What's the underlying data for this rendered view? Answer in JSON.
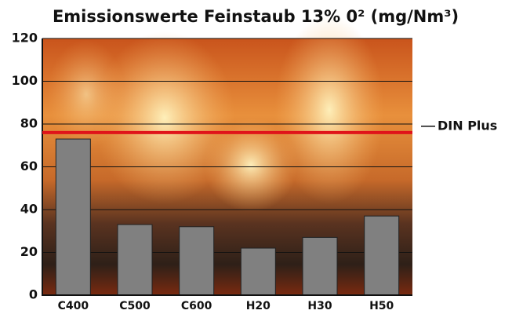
{
  "chart_data": {
    "type": "bar",
    "title": "Emissionswerte Feinstaub 13% 0² (mg/Nm³)",
    "categories": [
      "C400",
      "C500",
      "C600",
      "H20",
      "H30",
      "H50"
    ],
    "values": [
      73,
      33,
      32,
      22,
      27,
      37
    ],
    "color": "#808080",
    "ylim": [
      0,
      120
    ],
    "yticks": [
      0,
      20,
      40,
      60,
      80,
      100,
      120
    ],
    "grid": true,
    "reference_line": {
      "value": 76,
      "label": "DIN Plus",
      "color": "#e0141a"
    }
  }
}
